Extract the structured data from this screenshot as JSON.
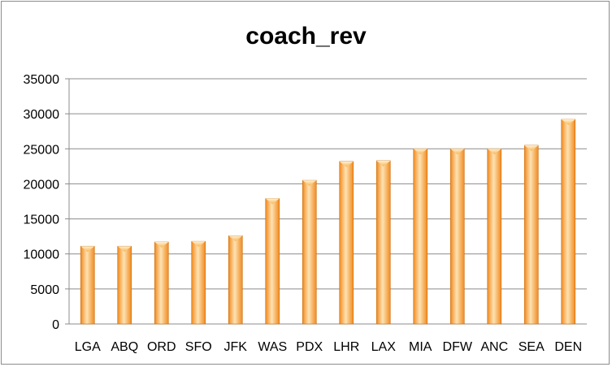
{
  "chart_data": {
    "type": "bar",
    "title": "coach_rev",
    "xlabel": "",
    "ylabel": "",
    "categories": [
      "LGA",
      "ABQ",
      "ORD",
      "SFO",
      "JFK",
      "WAS",
      "PDX",
      "LHR",
      "LAX",
      "MIA",
      "DFW",
      "ANC",
      "SEA",
      "DEN"
    ],
    "values": [
      11100,
      11100,
      11700,
      11800,
      12600,
      17900,
      20500,
      23200,
      23300,
      25000,
      25000,
      25000,
      25500,
      29200
    ],
    "ylim": [
      0,
      35000
    ],
    "yticks": [
      0,
      5000,
      10000,
      15000,
      20000,
      25000,
      30000,
      35000
    ],
    "grid": true,
    "legend": "none",
    "colors": {
      "bar_light": "#fde3b4",
      "bar_mid": "#fbb564",
      "bar_dark": "#f28a1e",
      "bar_edge": "#c96d0c",
      "grid": "#8c8c8c"
    }
  }
}
